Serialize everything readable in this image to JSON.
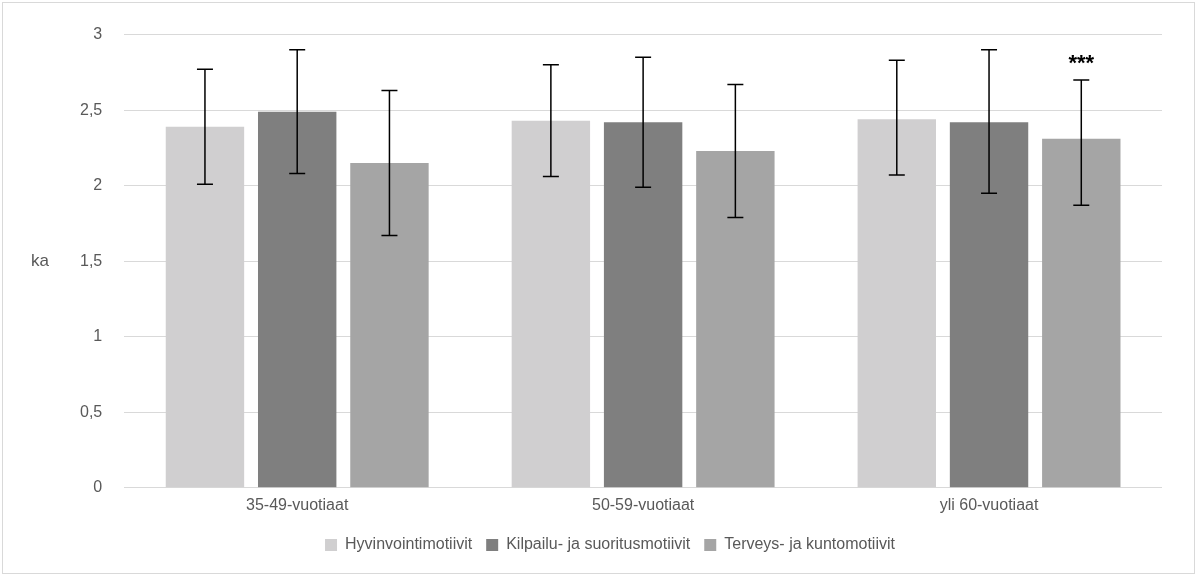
{
  "chart_data": {
    "type": "bar",
    "ylabel": "ka",
    "categories": [
      "35-49-vuotiaat",
      "50-59-vuotiaat",
      "yli 60-vuotiaat"
    ],
    "series": [
      {
        "name": "Hyvinvointimotiivit",
        "color": "#d0cfd0",
        "values": [
          2.39,
          2.43,
          2.44
        ],
        "errors": [
          [
            2.01,
            2.77
          ],
          [
            2.06,
            2.8
          ],
          [
            2.07,
            2.83
          ]
        ]
      },
      {
        "name": "Kilpailu- ja suoritusmotiivit",
        "color": "#7f7f7f",
        "values": [
          2.49,
          2.42,
          2.42
        ],
        "errors": [
          [
            2.08,
            2.9
          ],
          [
            1.99,
            2.85
          ],
          [
            1.95,
            2.9
          ]
        ]
      },
      {
        "name": "Terveys- ja kuntomotiivit",
        "color": "#a5a5a5",
        "values": [
          2.15,
          2.23,
          2.31
        ],
        "errors": [
          [
            1.67,
            2.63
          ],
          [
            1.79,
            2.67
          ],
          [
            1.87,
            2.7
          ]
        ]
      }
    ],
    "annotations": [
      "***"
    ],
    "ylim": [
      0,
      3
    ],
    "yticks": [
      0,
      {
        "value": 0.5,
        "label": "0,5"
      },
      1,
      {
        "value": 1.5,
        "label": "1,5"
      },
      2,
      {
        "value": 2.5,
        "label": "2,5"
      },
      3
    ],
    "grid": "y",
    "legend": "bottom"
  }
}
